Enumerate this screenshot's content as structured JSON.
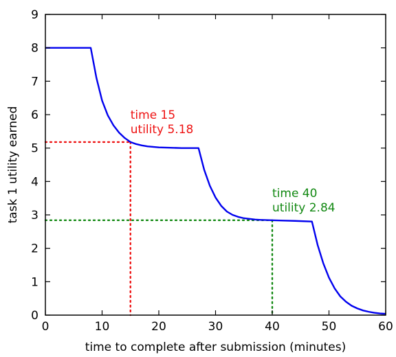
{
  "chart_data": {
    "type": "line",
    "title": "",
    "xlabel": "time to complete after submission (minutes)",
    "ylabel": "task 1 utility earned",
    "xlim": [
      0,
      60
    ],
    "ylim": [
      0,
      9
    ],
    "xticks": [
      0,
      10,
      20,
      30,
      40,
      50,
      60
    ],
    "yticks": [
      0,
      1,
      2,
      3,
      4,
      5,
      6,
      7,
      8,
      9
    ],
    "grid": false,
    "series": [
      {
        "color": "#0000ee",
        "x": [
          0,
          8,
          9,
          10,
          11,
          12,
          13,
          14,
          15,
          16,
          17,
          18,
          20,
          22,
          24,
          27,
          28,
          29,
          30,
          31,
          32,
          33,
          34,
          35,
          36,
          37,
          38,
          40,
          42,
          44,
          47,
          48,
          49,
          50,
          51,
          52,
          53,
          54,
          55,
          56,
          57,
          58,
          59,
          60
        ],
        "y": [
          8.0,
          8.0,
          7.1,
          6.42,
          5.98,
          5.68,
          5.46,
          5.3,
          5.18,
          5.12,
          5.08,
          5.05,
          5.02,
          5.01,
          5.0,
          5.0,
          4.35,
          3.87,
          3.52,
          3.27,
          3.1,
          3.0,
          2.94,
          2.9,
          2.88,
          2.86,
          2.85,
          2.84,
          2.83,
          2.82,
          2.8,
          2.1,
          1.55,
          1.12,
          0.8,
          0.56,
          0.4,
          0.28,
          0.2,
          0.14,
          0.1,
          0.07,
          0.05,
          0.04
        ]
      }
    ],
    "annotations": [
      {
        "x": 15,
        "y": 5.18,
        "line1": "time 15",
        "line2": "utility 5.18",
        "color": "#ee1111"
      },
      {
        "x": 40,
        "y": 2.84,
        "line1": "time 40",
        "line2": "utility 2.84",
        "color": "#118811"
      }
    ]
  }
}
